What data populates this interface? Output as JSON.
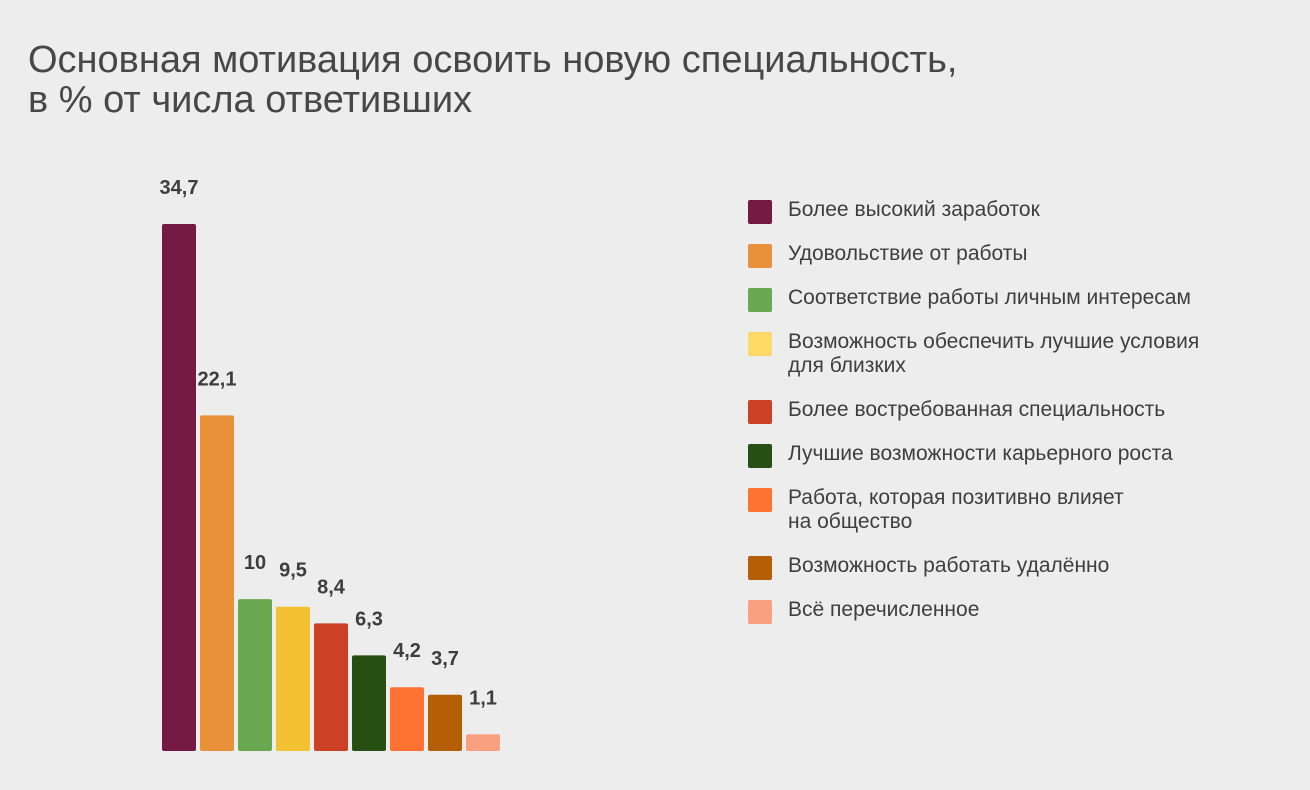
{
  "title_lines": [
    "Основная мотивация освоить новую специальность,",
    "в % от числа ответивших"
  ],
  "chart_data": {
    "type": "bar",
    "categories": [
      "Более высокий заработок",
      "Удовольствие от работы",
      "Соответствие работы личным интересам",
      "Возможность обеспечить лучшие условия\nдля близких",
      "Более востребованная специальность",
      "Лучшие возможности карьерного роста",
      "Работа, которая позитивно влияет\nна общество",
      "Возможность работать удалённо",
      "Всё перечисленное"
    ],
    "values": [
      34.7,
      22.1,
      10,
      9.5,
      8.4,
      6.3,
      4.2,
      3.7,
      1.1
    ],
    "value_labels": [
      "34,7",
      "22,1",
      "10",
      "9,5",
      "8,4",
      "6,3",
      "4,2",
      "3,7",
      "1,1"
    ],
    "colors": [
      "#741a45",
      "#e8913a",
      "#6aa84f",
      "#f2c232",
      "#cc4125",
      "#274e13",
      "#ff7231",
      "#b45f06",
      "#f9a17f"
    ],
    "legend_colors": [
      "#741a45",
      "#e8913a",
      "#6aa84f",
      "#ffd966",
      "#cc4125",
      "#274e13",
      "#ff7231",
      "#b45f06",
      "#f9a17f"
    ],
    "ylim": [
      0,
      34.7
    ],
    "grid": false,
    "legend_position": "right"
  }
}
